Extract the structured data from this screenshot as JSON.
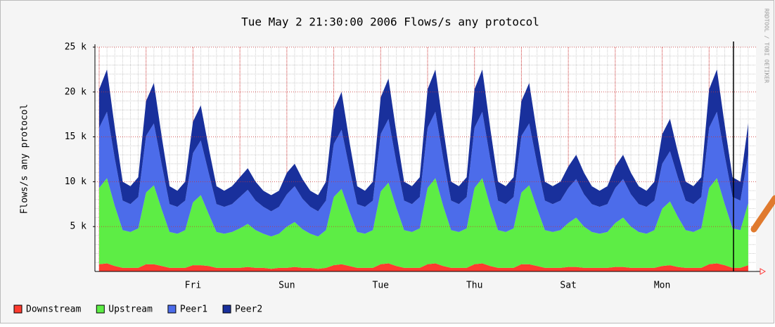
{
  "chart_data": {
    "type": "stacked_area",
    "title": "Tue May  2 21:30:00 2006 Flows/s any protocol",
    "y_label": "Flows/s any protocol",
    "side_text": "RRDTOOL / TOBI OETIKER",
    "categories": [
      null,
      null,
      null,
      null,
      null,
      null,
      null,
      null,
      null,
      null,
      null,
      null,
      "Fri",
      null,
      null,
      null,
      null,
      null,
      null,
      null,
      null,
      null,
      null,
      null,
      "Sun",
      null,
      null,
      null,
      null,
      null,
      null,
      null,
      null,
      null,
      null,
      null,
      "Tue",
      null,
      null,
      null,
      null,
      null,
      null,
      null,
      null,
      null,
      null,
      null,
      "Thu",
      null,
      null,
      null,
      null,
      null,
      null,
      null,
      null,
      null,
      null,
      null,
      "Sat",
      null,
      null,
      null,
      null,
      null,
      null,
      null,
      null,
      null,
      null,
      null,
      "Mon",
      null,
      null,
      null,
      null,
      null,
      null,
      null,
      null,
      null,
      null,
      null
    ],
    "series": [
      {
        "name": "Downstream",
        "color": "#ff3b2f",
        "values": [
          800,
          900,
          600,
          400,
          400,
          400,
          800,
          800,
          600,
          400,
          400,
          400,
          700,
          700,
          600,
          400,
          400,
          400,
          400,
          500,
          400,
          400,
          300,
          400,
          400,
          500,
          400,
          400,
          300,
          400,
          700,
          800,
          600,
          400,
          400,
          400,
          800,
          900,
          600,
          400,
          400,
          400,
          800,
          900,
          600,
          400,
          400,
          400,
          800,
          900,
          600,
          400,
          400,
          400,
          800,
          800,
          600,
          400,
          400,
          400,
          500,
          500,
          400,
          400,
          400,
          400,
          500,
          500,
          400,
          400,
          400,
          400,
          600,
          700,
          500,
          400,
          400,
          400,
          800,
          900,
          700,
          400,
          400,
          700
        ]
      },
      {
        "name": "Upstream",
        "color": "#5ded45",
        "values": [
          8500,
          9500,
          6700,
          4200,
          4000,
          4400,
          8000,
          8800,
          6300,
          4000,
          3800,
          4200,
          7000,
          7800,
          5800,
          4000,
          3800,
          4000,
          4400,
          4800,
          4200,
          3800,
          3600,
          3800,
          4600,
          5000,
          4300,
          3800,
          3600,
          4200,
          7600,
          8400,
          6100,
          4000,
          3800,
          4200,
          8100,
          9000,
          6500,
          4200,
          4000,
          4400,
          8500,
          9500,
          6700,
          4200,
          4000,
          4400,
          8500,
          9500,
          6700,
          4200,
          4000,
          4400,
          8000,
          8800,
          6400,
          4200,
          4000,
          4200,
          4900,
          5500,
          4600,
          4000,
          3800,
          4000,
          4900,
          5500,
          4600,
          4000,
          3800,
          4200,
          6400,
          7100,
          5600,
          4200,
          4000,
          4400,
          8500,
          9500,
          6800,
          4400,
          4200,
          6900
        ]
      },
      {
        "name": "Peer1",
        "color": "#4c6cea",
        "values": [
          6700,
          7400,
          5300,
          3300,
          3100,
          3500,
          6300,
          6900,
          5000,
          3100,
          3000,
          3300,
          5500,
          6100,
          4600,
          3100,
          3000,
          3100,
          3500,
          3800,
          3300,
          3000,
          2800,
          3000,
          3600,
          4000,
          3400,
          3000,
          2800,
          3300,
          5900,
          6600,
          4800,
          3100,
          3000,
          3300,
          6400,
          7100,
          5100,
          3300,
          3100,
          3500,
          6700,
          7400,
          5300,
          3300,
          3100,
          3500,
          6700,
          7400,
          5300,
          3300,
          3100,
          3500,
          6300,
          6900,
          5000,
          3300,
          3100,
          3300,
          3900,
          4300,
          3600,
          3100,
          3000,
          3100,
          3900,
          4300,
          3600,
          3100,
          3000,
          3300,
          5000,
          5600,
          4400,
          3300,
          3100,
          3500,
          6700,
          7400,
          5400,
          3500,
          3300,
          5400
        ]
      },
      {
        "name": "Peer2",
        "color": "#19309c",
        "values": [
          4300,
          4700,
          3400,
          2100,
          2000,
          2200,
          3900,
          4500,
          3100,
          2000,
          1800,
          2100,
          3500,
          3900,
          2800,
          2000,
          1800,
          2000,
          2200,
          2400,
          2100,
          1800,
          1800,
          1800,
          2400,
          2500,
          2200,
          1800,
          1800,
          2100,
          3800,
          4200,
          3000,
          2000,
          1800,
          2100,
          4100,
          4500,
          3300,
          2100,
          2000,
          2200,
          4300,
          4700,
          3400,
          2100,
          2000,
          2200,
          4300,
          4700,
          3400,
          2100,
          2000,
          2200,
          3900,
          4500,
          3300,
          2100,
          2000,
          2100,
          2400,
          2700,
          2400,
          2000,
          1800,
          2000,
          2400,
          2700,
          2400,
          2000,
          1800,
          2100,
          3300,
          3600,
          2800,
          2100,
          2000,
          2200,
          4300,
          4700,
          3400,
          2200,
          2100,
          3500
        ]
      }
    ],
    "ylim": [
      0,
      25000
    ],
    "yticks": [
      {
        "value": 5000,
        "label": "5 k"
      },
      {
        "value": 10000,
        "label": "10 k"
      },
      {
        "value": 15000,
        "label": "15 k"
      },
      {
        "value": 20000,
        "label": "20 k"
      },
      {
        "value": 25000,
        "label": "25 k"
      }
    ],
    "grid": true
  }
}
